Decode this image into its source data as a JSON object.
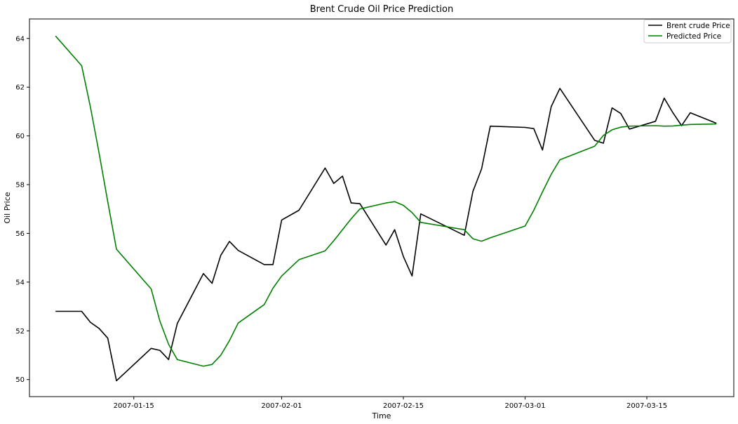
{
  "chart_data": {
    "type": "line",
    "title": "Brent Crude Oil Price Prediction",
    "xlabel": "Time",
    "ylabel": "Oil Price",
    "xlim": [
      "2007-01-03",
      "2007-03-25"
    ],
    "ylim": [
      49.3,
      64.8
    ],
    "x_ticks": [
      "2007-01-15",
      "2007-02-01",
      "2007-02-15",
      "2007-03-01",
      "2007-03-15"
    ],
    "y_ticks": [
      50,
      52,
      54,
      56,
      58,
      60,
      62,
      64
    ],
    "grid": false,
    "legend_position": "top-right",
    "series": [
      {
        "name": "Brent crude Price",
        "color": "#000000",
        "points": [
          [
            "2007-01-06",
            52.8
          ],
          [
            "2007-01-09",
            52.8
          ],
          [
            "2007-01-10",
            52.35
          ],
          [
            "2007-01-11",
            52.1
          ],
          [
            "2007-01-12",
            51.7
          ],
          [
            "2007-01-13",
            49.95
          ],
          [
            "2007-01-17",
            51.28
          ],
          [
            "2007-01-18",
            51.2
          ],
          [
            "2007-01-19",
            50.82
          ],
          [
            "2007-01-20",
            52.3
          ],
          [
            "2007-01-23",
            54.35
          ],
          [
            "2007-01-24",
            53.95
          ],
          [
            "2007-01-25",
            55.1
          ],
          [
            "2007-01-26",
            55.67
          ],
          [
            "2007-01-27",
            55.3
          ],
          [
            "2007-01-30",
            54.72
          ],
          [
            "2007-01-31",
            54.72
          ],
          [
            "2007-02-01",
            56.55
          ],
          [
            "2007-02-03",
            56.95
          ],
          [
            "2007-02-06",
            58.68
          ],
          [
            "2007-02-07",
            58.05
          ],
          [
            "2007-02-08",
            58.35
          ],
          [
            "2007-02-09",
            57.25
          ],
          [
            "2007-02-10",
            57.22
          ],
          [
            "2007-02-13",
            55.52
          ],
          [
            "2007-02-14",
            56.15
          ],
          [
            "2007-02-15",
            55.05
          ],
          [
            "2007-02-16",
            54.25
          ],
          [
            "2007-02-17",
            56.8
          ],
          [
            "2007-02-22",
            55.92
          ],
          [
            "2007-02-23",
            57.72
          ],
          [
            "2007-02-24",
            58.65
          ],
          [
            "2007-02-25",
            60.4
          ],
          [
            "2007-03-01",
            60.35
          ],
          [
            "2007-03-02",
            60.3
          ],
          [
            "2007-03-03",
            59.42
          ],
          [
            "2007-03-04",
            61.2
          ],
          [
            "2007-03-05",
            61.95
          ],
          [
            "2007-03-09",
            59.82
          ],
          [
            "2007-03-10",
            59.7
          ],
          [
            "2007-03-11",
            61.15
          ],
          [
            "2007-03-12",
            60.92
          ],
          [
            "2007-03-13",
            60.28
          ],
          [
            "2007-03-16",
            60.6
          ],
          [
            "2007-03-17",
            61.55
          ],
          [
            "2007-03-18",
            60.95
          ],
          [
            "2007-03-19",
            60.42
          ],
          [
            "2007-03-20",
            60.95
          ],
          [
            "2007-03-23",
            60.52
          ]
        ]
      },
      {
        "name": "Predicted Price",
        "color": "#008000",
        "points": [
          [
            "2007-01-06",
            64.1
          ],
          [
            "2007-01-09",
            62.88
          ],
          [
            "2007-01-10",
            61.2
          ],
          [
            "2007-01-11",
            59.3
          ],
          [
            "2007-01-12",
            57.3
          ],
          [
            "2007-01-13",
            55.35
          ],
          [
            "2007-01-17",
            53.72
          ],
          [
            "2007-01-18",
            52.4
          ],
          [
            "2007-01-19",
            51.45
          ],
          [
            "2007-01-20",
            50.82
          ],
          [
            "2007-01-23",
            50.55
          ],
          [
            "2007-01-24",
            50.62
          ],
          [
            "2007-01-25",
            51.0
          ],
          [
            "2007-01-26",
            51.6
          ],
          [
            "2007-01-27",
            52.32
          ],
          [
            "2007-01-30",
            53.08
          ],
          [
            "2007-01-31",
            53.75
          ],
          [
            "2007-02-01",
            54.25
          ],
          [
            "2007-02-03",
            54.92
          ],
          [
            "2007-02-06",
            55.28
          ],
          [
            "2007-02-07",
            55.7
          ],
          [
            "2007-02-08",
            56.15
          ],
          [
            "2007-02-09",
            56.6
          ],
          [
            "2007-02-10",
            57.0
          ],
          [
            "2007-02-13",
            57.25
          ],
          [
            "2007-02-14",
            57.3
          ],
          [
            "2007-02-15",
            57.15
          ],
          [
            "2007-02-16",
            56.85
          ],
          [
            "2007-02-17",
            56.45
          ],
          [
            "2007-02-22",
            56.15
          ],
          [
            "2007-02-23",
            55.78
          ],
          [
            "2007-02-24",
            55.68
          ],
          [
            "2007-02-25",
            55.82
          ],
          [
            "2007-03-01",
            56.3
          ],
          [
            "2007-03-02",
            56.95
          ],
          [
            "2007-03-03",
            57.7
          ],
          [
            "2007-03-04",
            58.42
          ],
          [
            "2007-03-05",
            59.02
          ],
          [
            "2007-03-09",
            59.58
          ],
          [
            "2007-03-10",
            60.02
          ],
          [
            "2007-03-11",
            60.25
          ],
          [
            "2007-03-12",
            60.36
          ],
          [
            "2007-03-13",
            60.4
          ],
          [
            "2007-03-16",
            60.42
          ],
          [
            "2007-03-17",
            60.4
          ],
          [
            "2007-03-18",
            60.41
          ],
          [
            "2007-03-19",
            60.44
          ],
          [
            "2007-03-20",
            60.47
          ],
          [
            "2007-03-23",
            60.49
          ]
        ]
      }
    ]
  }
}
